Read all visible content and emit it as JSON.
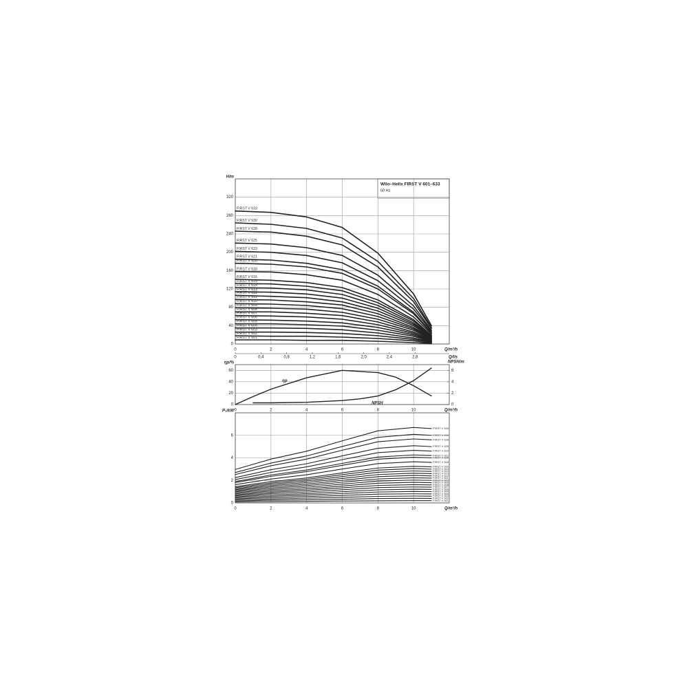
{
  "chart_data": [
    {
      "type": "line",
      "title": "Wilo–Helix FIRST V 601–633",
      "subtitle": "50 Hz",
      "ylabel": "H/m",
      "xlabel": "Q/m³/h",
      "x2label": "Q/l/s",
      "xlim": [
        0,
        12
      ],
      "xticks": [
        0,
        2,
        4,
        6,
        8,
        10
      ],
      "x2lim": [
        0,
        3.333
      ],
      "x2ticks": [
        0,
        {
          "value": 0.4,
          "label": "0,4"
        },
        {
          "value": 0.8,
          "label": "0,8"
        },
        {
          "value": 1.2,
          "label": "1,2"
        },
        {
          "value": 1.6,
          "label": "1,6"
        },
        {
          "value": 2.0,
          "label": "2,0"
        },
        {
          "value": 2.4,
          "label": "2,4"
        },
        {
          "value": 2.8,
          "label": "2,8"
        }
      ],
      "ylim": [
        0,
        360
      ],
      "yticks": [
        0,
        40,
        80,
        120,
        160,
        200,
        240,
        280,
        320
      ],
      "grid": true,
      "color": "#222222",
      "x": [
        0,
        2,
        4,
        6,
        8,
        10,
        11
      ],
      "series": [
        {
          "name": "FIRST V 633",
          "values": [
            290,
            287,
            277,
            254,
            198,
            109,
            40
          ]
        },
        {
          "name": "FIRST V 630",
          "values": [
            264,
            261,
            252,
            231,
            180,
            99,
            36
          ]
        },
        {
          "name": "FIRST V 628",
          "values": [
            246,
            244,
            235,
            216,
            168,
            92,
            34
          ]
        },
        {
          "name": "FIRST V 625",
          "values": [
            220,
            218,
            210,
            193,
            150,
            83,
            30
          ]
        },
        {
          "name": "FIRST V 623",
          "values": [
            202,
            200,
            193,
            177,
            138,
            76,
            28
          ]
        },
        {
          "name": "FIRST V 621",
          "values": [
            185,
            183,
            176,
            162,
            126,
            69,
            25
          ]
        },
        {
          "name": "FIRST V 620",
          "values": [
            176,
            174,
            168,
            154,
            120,
            66,
            24
          ]
        },
        {
          "name": "FIRST V 618",
          "values": [
            158,
            157,
            151,
            139,
            108,
            59,
            22
          ]
        },
        {
          "name": "FIRST V 616",
          "values": [
            141,
            139,
            134,
            123,
            96,
            53,
            19
          ]
        },
        {
          "name": "FIRST V 615",
          "values": [
            132,
            131,
            126,
            116,
            90,
            50,
            18
          ]
        },
        {
          "name": "FIRST V 614",
          "values": [
            123,
            122,
            118,
            108,
            84,
            46,
            17
          ]
        },
        {
          "name": "FIRST V 613",
          "values": [
            114,
            113,
            109,
            100,
            78,
            43,
            16
          ]
        },
        {
          "name": "FIRST V 612",
          "values": [
            106,
            104,
            101,
            92,
            72,
            40,
            14
          ]
        },
        {
          "name": "FIRST V 611",
          "values": [
            97,
            96,
            92,
            85,
            66,
            36,
            13
          ]
        },
        {
          "name": "FIRST V 610",
          "values": [
            88,
            87,
            84,
            77,
            60,
            33,
            12
          ]
        },
        {
          "name": "FIRST V 609",
          "values": [
            79,
            78,
            76,
            69,
            54,
            30,
            11
          ]
        },
        {
          "name": "FIRST V 608",
          "values": [
            70,
            70,
            67,
            62,
            48,
            26,
            10
          ]
        },
        {
          "name": "FIRST V 607",
          "values": [
            62,
            61,
            59,
            54,
            42,
            23,
            8
          ]
        },
        {
          "name": "FIRST V 606",
          "values": [
            53,
            52,
            50,
            46,
            36,
            20,
            7
          ]
        },
        {
          "name": "FIRST V 605",
          "values": [
            44,
            44,
            42,
            39,
            30,
            17,
            6
          ]
        },
        {
          "name": "FIRST V 604",
          "values": [
            35,
            35,
            34,
            31,
            24,
            13,
            5
          ]
        },
        {
          "name": "FIRST V 603",
          "values": [
            26,
            26,
            25,
            23,
            18,
            10,
            4
          ]
        },
        {
          "name": "FIRST V 602",
          "values": [
            18,
            17,
            17,
            15,
            12,
            7,
            2
          ]
        },
        {
          "name": "FIRST V 601",
          "values": [
            9,
            9,
            8,
            8,
            6,
            3,
            1
          ]
        }
      ]
    },
    {
      "type": "line",
      "ylabel": "ηp/%",
      "y2label": "NPSH/m",
      "xlabel": "Q/m³/h",
      "xlim": [
        0,
        12
      ],
      "xticks": [
        0,
        2,
        4,
        6,
        8,
        10
      ],
      "ylim": [
        0,
        70
      ],
      "yticks": [
        0,
        20,
        40,
        60
      ],
      "y2lim": [
        0,
        7
      ],
      "y2ticks": [
        0,
        2,
        4,
        6
      ],
      "grid": true,
      "color": "#222222",
      "series": [
        {
          "name": "ηp",
          "x": [
            0,
            1,
            2,
            4,
            6,
            8,
            9,
            10,
            11
          ],
          "values": [
            0,
            14,
            27,
            47,
            60,
            56,
            48,
            33,
            15
          ]
        },
        {
          "name": "NPSH",
          "axis": "y2",
          "x": [
            1,
            2,
            4,
            6,
            7,
            8,
            9,
            10,
            11
          ],
          "values": [
            0.3,
            0.3,
            0.4,
            0.7,
            1.0,
            1.5,
            2.6,
            4.2,
            6.4
          ]
        }
      ]
    },
    {
      "type": "line",
      "ylabel": "P₂/kW",
      "xlabel": "Q/m³/h",
      "xlim": [
        0,
        12
      ],
      "xticks": [
        0,
        2,
        4,
        6,
        8,
        10
      ],
      "ylim": [
        0,
        8
      ],
      "yticks": [
        0,
        2,
        4,
        6
      ],
      "grid": true,
      "color": "#222222",
      "x": [
        0,
        2,
        4,
        6,
        8,
        10,
        11
      ],
      "series": [
        {
          "name": "FIRST V 633",
          "values": [
            2.97,
            3.89,
            4.59,
            5.51,
            6.4,
            6.7,
            6.6
          ]
        },
        {
          "name": "FIRST V 630",
          "values": [
            2.7,
            3.54,
            4.17,
            5.01,
            5.82,
            6.09,
            6.0
          ]
        },
        {
          "name": "FIRST V 628",
          "values": [
            2.52,
            3.3,
            3.89,
            4.68,
            5.43,
            5.68,
            5.6
          ]
        },
        {
          "name": "FIRST V 625",
          "values": [
            2.25,
            2.95,
            3.48,
            4.18,
            4.85,
            5.08,
            5.0
          ]
        },
        {
          "name": "FIRST V 623",
          "values": [
            2.07,
            2.71,
            3.2,
            3.84,
            4.46,
            4.67,
            4.6
          ]
        },
        {
          "name": "FIRST V 621",
          "values": [
            1.89,
            2.48,
            2.92,
            3.51,
            4.07,
            4.26,
            4.2
          ]
        },
        {
          "name": "FIRST V 620",
          "values": [
            1.8,
            2.36,
            2.78,
            3.34,
            3.88,
            4.06,
            4.0
          ]
        },
        {
          "name": "FIRST V 618",
          "values": [
            1.62,
            2.12,
            2.5,
            3.01,
            3.49,
            3.65,
            3.6
          ]
        },
        {
          "name": "FIRST V 616",
          "values": [
            1.44,
            1.89,
            2.22,
            2.67,
            3.1,
            3.25,
            3.2
          ]
        },
        {
          "name": "FIRST V 615",
          "values": [
            1.35,
            1.77,
            2.09,
            2.51,
            2.91,
            3.05,
            3.0
          ]
        },
        {
          "name": "FIRST V 614",
          "values": [
            1.26,
            1.65,
            1.95,
            2.34,
            2.72,
            2.84,
            2.8
          ]
        },
        {
          "name": "FIRST V 613",
          "values": [
            1.17,
            1.53,
            1.81,
            2.17,
            2.52,
            2.64,
            2.6
          ]
        },
        {
          "name": "FIRST V 612",
          "values": [
            1.08,
            1.42,
            1.67,
            2.0,
            2.33,
            2.44,
            2.4
          ]
        },
        {
          "name": "FIRST V 611",
          "values": [
            0.99,
            1.3,
            1.53,
            1.84,
            2.13,
            2.23,
            2.2
          ]
        },
        {
          "name": "FIRST V 610",
          "values": [
            0.9,
            1.18,
            1.39,
            1.67,
            1.94,
            2.03,
            2.0
          ]
        },
        {
          "name": "FIRST V 609",
          "values": [
            0.81,
            1.06,
            1.25,
            1.5,
            1.75,
            1.83,
            1.8
          ]
        },
        {
          "name": "FIRST V 608",
          "values": [
            0.72,
            0.94,
            1.11,
            1.34,
            1.55,
            1.62,
            1.6
          ]
        },
        {
          "name": "FIRST V 607",
          "values": [
            0.63,
            0.83,
            0.97,
            1.17,
            1.36,
            1.42,
            1.4
          ]
        },
        {
          "name": "FIRST V 606",
          "values": [
            0.54,
            0.71,
            0.83,
            1.0,
            1.16,
            1.22,
            1.2
          ]
        },
        {
          "name": "FIRST V 605",
          "values": [
            0.45,
            0.59,
            0.7,
            0.84,
            0.97,
            1.02,
            1.0
          ]
        },
        {
          "name": "FIRST V 604",
          "values": [
            0.36,
            0.47,
            0.56,
            0.67,
            0.78,
            0.81,
            0.8
          ]
        },
        {
          "name": "FIRST V 603",
          "values": [
            0.27,
            0.35,
            0.42,
            0.5,
            0.58,
            0.61,
            0.6
          ]
        },
        {
          "name": "FIRST V 602",
          "values": [
            0.18,
            0.24,
            0.28,
            0.33,
            0.39,
            0.41,
            0.4
          ]
        },
        {
          "name": "FIRST V 601",
          "values": [
            0.09,
            0.12,
            0.14,
            0.17,
            0.19,
            0.2,
            0.2
          ]
        }
      ]
    }
  ]
}
